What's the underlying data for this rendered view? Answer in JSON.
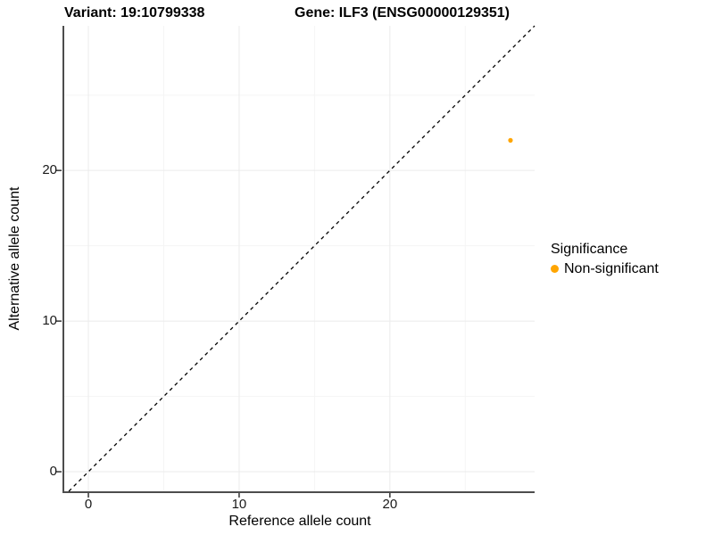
{
  "titles": {
    "variant": "Variant: 19:10799338",
    "gene": "Gene: ILF3 (ENSG00000129351)"
  },
  "chart_data": {
    "type": "scatter",
    "xlabel": "Reference allele count",
    "ylabel": "Alternative allele count",
    "xlim": [
      -1.6,
      29.6
    ],
    "ylim": [
      -1.3,
      29.6
    ],
    "x_ticks": [
      0,
      10,
      20
    ],
    "y_ticks": [
      0,
      10,
      20
    ],
    "x_minor_ticks": [
      5,
      15,
      25
    ],
    "y_minor_ticks": [
      5,
      15,
      25
    ],
    "grid": "major and minor gridlines, light gray, white background",
    "points": [
      {
        "x": 28,
        "y": 22,
        "series": "Non-significant",
        "color": "#FFA500",
        "radius": 2.6
      }
    ],
    "identity_line": {
      "style": "dashed",
      "slope": 1,
      "intercept": 0,
      "color": "#000000"
    },
    "legend": {
      "title": "Significance",
      "position": "right",
      "entries": [
        {
          "label": "Non-significant",
          "color": "#FFA500"
        }
      ]
    }
  }
}
